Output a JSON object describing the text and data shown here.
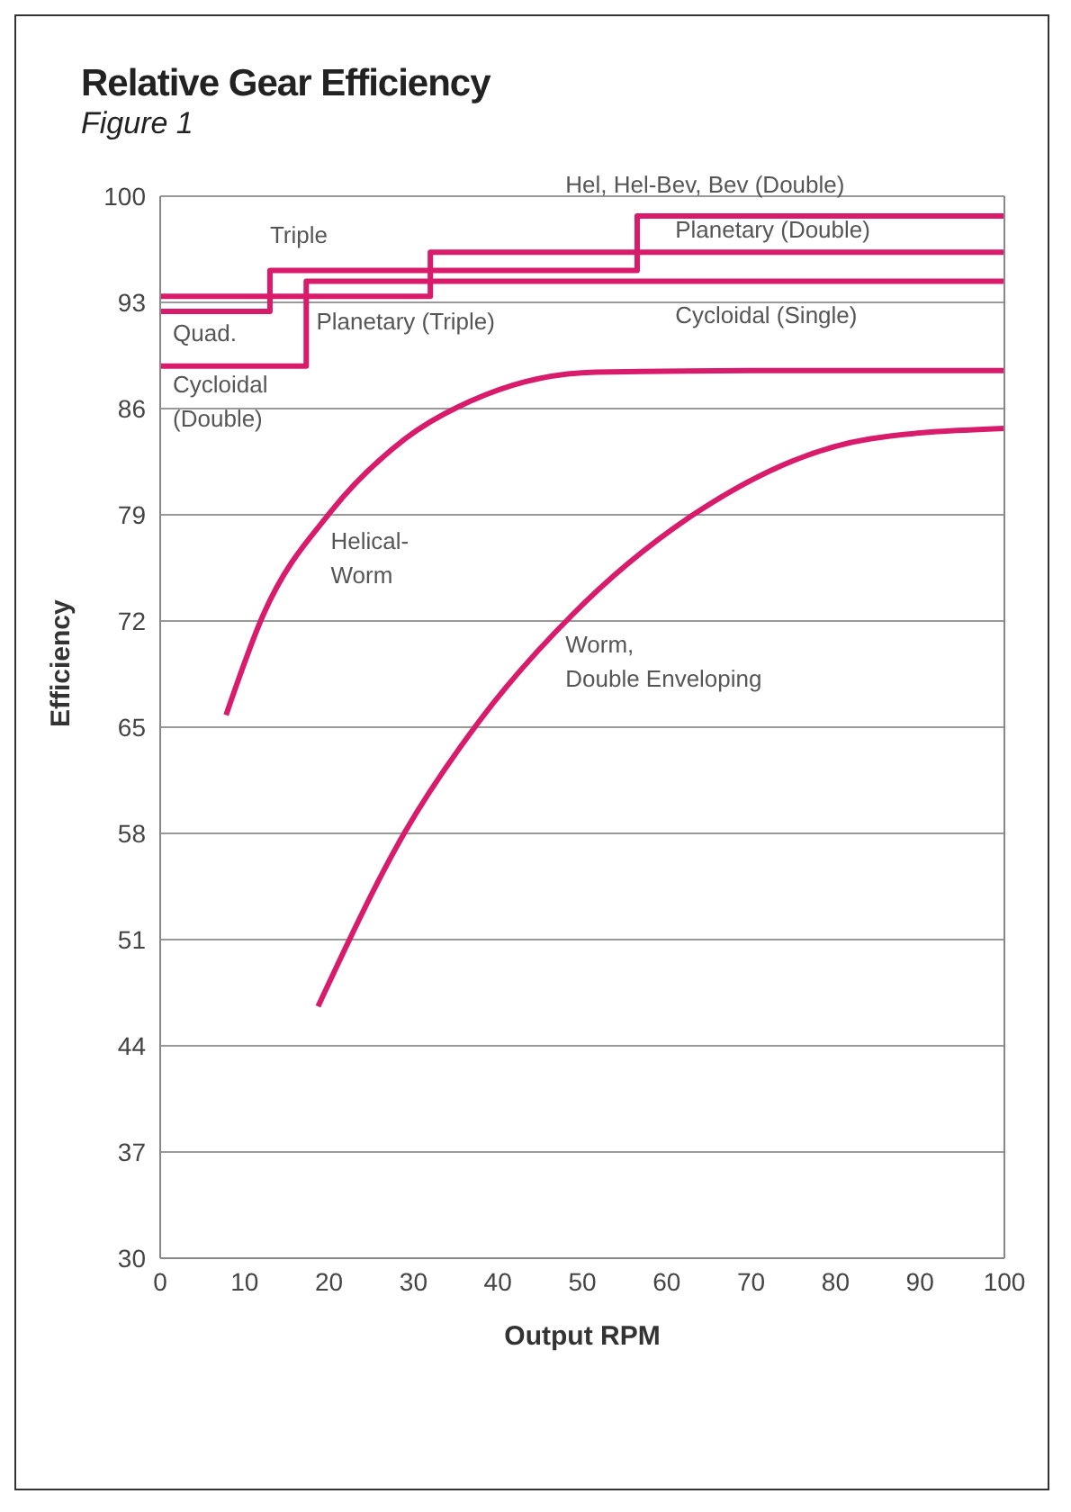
{
  "chart_data": {
    "type": "line",
    "title": "Relative Gear Efficiency",
    "subtitle": "Figure 1",
    "xlabel": "Output RPM",
    "ylabel": "Efficiency",
    "xlim": [
      0,
      100
    ],
    "xticks": [
      0,
      10,
      20,
      30,
      40,
      50,
      60,
      70,
      80,
      90,
      100
    ],
    "ylim": [
      30,
      100
    ],
    "yticks": [
      30,
      37,
      44,
      51,
      58,
      65,
      72,
      79,
      86,
      93,
      100
    ],
    "grid": "y",
    "series": [
      {
        "type": "step",
        "color": "#d81b6b",
        "x": [
          0,
          13,
          56.5,
          100
        ],
        "values": [
          92.4,
          95.1,
          98.7,
          98.7
        ]
      },
      {
        "type": "step",
        "color": "#d81b6b",
        "x": [
          0,
          32,
          100
        ],
        "values": [
          93.4,
          96.3,
          96.3
        ]
      },
      {
        "type": "step",
        "color": "#d81b6b",
        "x": [
          0,
          17.3,
          100
        ],
        "values": [
          88.8,
          94.4,
          94.4
        ]
      },
      {
        "type": "line",
        "color": "#d81b6b",
        "x": [
          7.8,
          12.2,
          20.2,
          29,
          38.5,
          51.6,
          70,
          100
        ],
        "values": [
          65.8,
          72.4,
          79.2,
          84,
          86.9,
          88.4,
          88.5,
          88.5
        ]
      },
      {
        "type": "line",
        "color": "#d81b6b",
        "x": [
          18.7,
          29,
          37.8,
          48.8,
          63.4,
          84,
          100
        ],
        "values": [
          46.6,
          58.1,
          65.4,
          72.4,
          79.1,
          84,
          84.7
        ]
      }
    ],
    "annotations": [
      "Hel, Hel-Bev, Bev (Double)",
      "Triple",
      "Planetary (Double)",
      "Quad.",
      "Planetary (Triple)",
      "Cycloidal (Single)",
      "Cycloidal\n(Double)",
      "Helical-\nWorm",
      "Worm,\nDouble Enveloping"
    ]
  }
}
